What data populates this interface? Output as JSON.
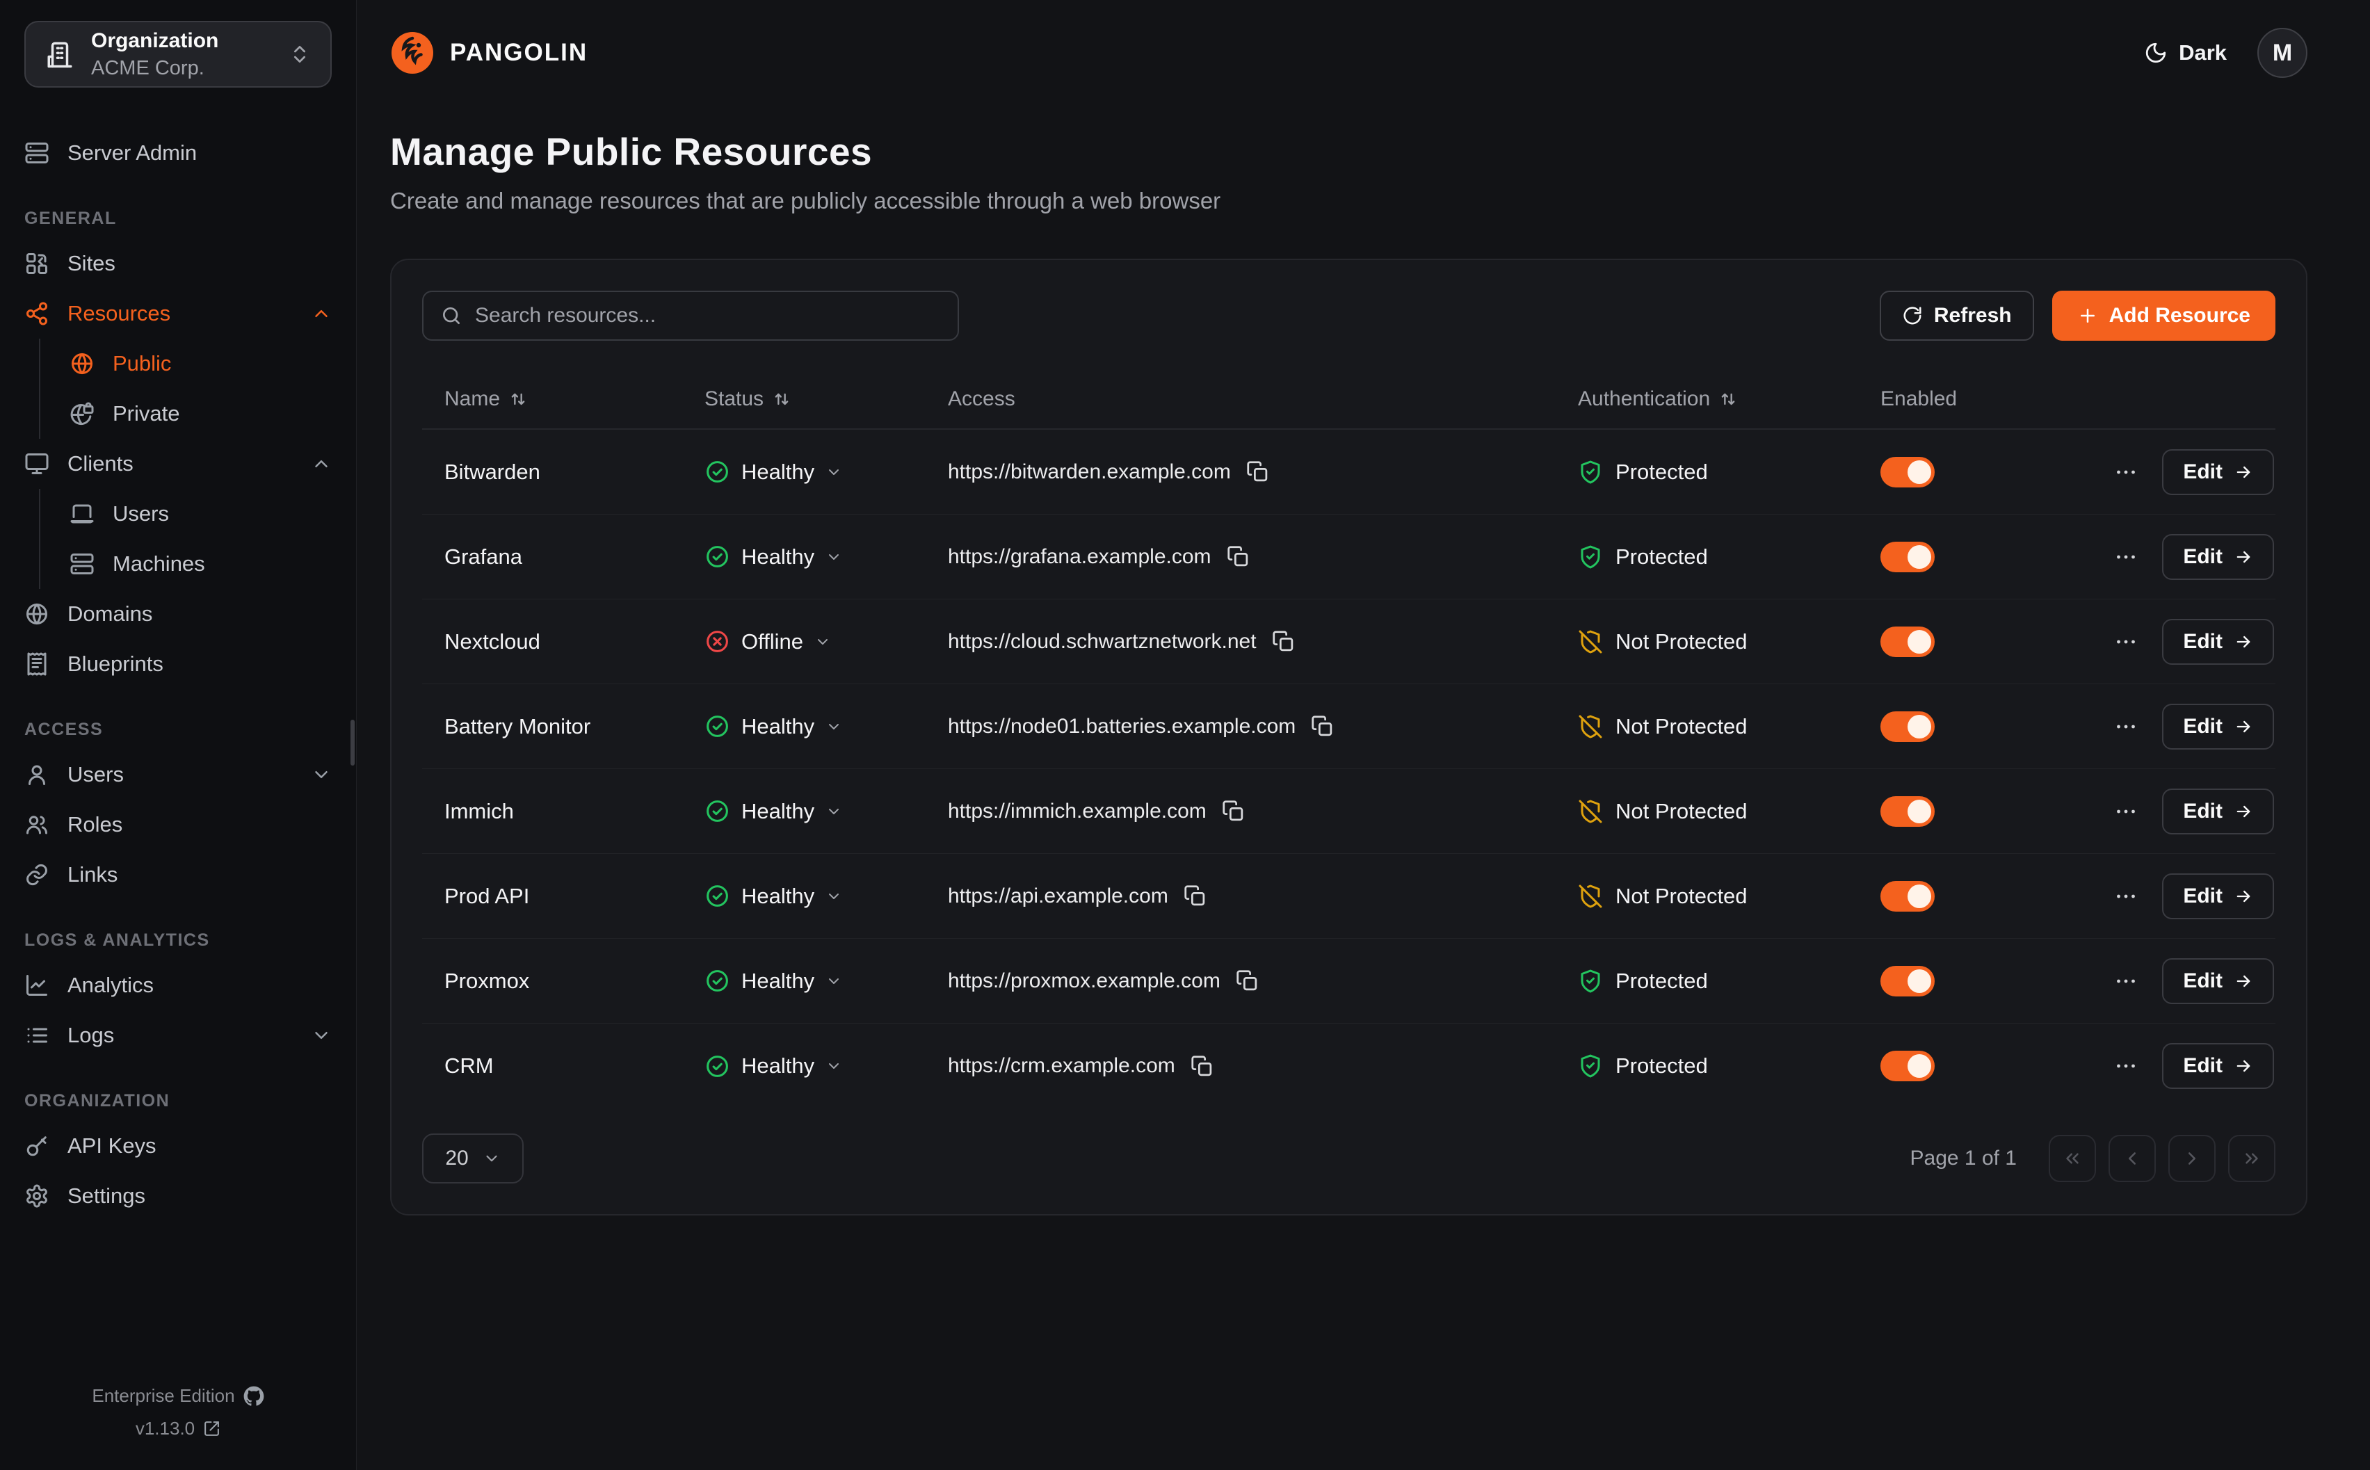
{
  "colors": {
    "accent": "#F4611E",
    "healthy": "#23c45f",
    "offline": "#ef4747",
    "not_protected": "#dfa20e"
  },
  "sidebar": {
    "org_selector": {
      "label": "Organization",
      "value": "ACME Corp."
    },
    "server_admin": "Server Admin",
    "sections": [
      {
        "label": "GENERAL",
        "items": [
          {
            "id": "sites",
            "label": "Sites",
            "icon": "combine-icon"
          },
          {
            "id": "resources",
            "label": "Resources",
            "icon": "share-nodes-icon",
            "active": true,
            "chevron": "up",
            "children": [
              {
                "id": "public",
                "label": "Public",
                "icon": "globe-icon",
                "active": true
              },
              {
                "id": "private",
                "label": "Private",
                "icon": "globe-lock-icon"
              }
            ]
          },
          {
            "id": "clients",
            "label": "Clients",
            "icon": "monitor-icon",
            "chevron": "up",
            "children": [
              {
                "id": "client-users",
                "label": "Users",
                "icon": "laptop-icon"
              },
              {
                "id": "machines",
                "label": "Machines",
                "icon": "server-icon"
              }
            ]
          },
          {
            "id": "domains",
            "label": "Domains",
            "icon": "globe-icon"
          },
          {
            "id": "blueprints",
            "label": "Blueprints",
            "icon": "receipt-icon"
          }
        ]
      },
      {
        "label": "ACCESS",
        "items": [
          {
            "id": "users",
            "label": "Users",
            "icon": "user-icon",
            "chevron": "down"
          },
          {
            "id": "roles",
            "label": "Roles",
            "icon": "users-icon"
          },
          {
            "id": "links",
            "label": "Links",
            "icon": "link-icon"
          }
        ]
      },
      {
        "label": "LOGS & ANALYTICS",
        "items": [
          {
            "id": "analytics",
            "label": "Analytics",
            "icon": "chart-line-icon"
          },
          {
            "id": "logs",
            "label": "Logs",
            "icon": "list-icon",
            "chevron": "down"
          }
        ]
      },
      {
        "label": "ORGANIZATION",
        "items": [
          {
            "id": "api-keys",
            "label": "API Keys",
            "icon": "key-icon"
          },
          {
            "id": "settings",
            "label": "Settings",
            "icon": "gear-icon"
          }
        ]
      }
    ],
    "footer": {
      "edition": "Enterprise Edition",
      "version": "v1.13.0"
    }
  },
  "header": {
    "brand": "PANGOLIN",
    "theme_label": "Dark",
    "avatar_initial": "M"
  },
  "page": {
    "title": "Manage Public Resources",
    "subtitle": "Create and manage resources that are publicly accessible through a web browser"
  },
  "toolbar": {
    "search_placeholder": "Search resources...",
    "refresh_label": "Refresh",
    "add_label": "Add Resource"
  },
  "table": {
    "columns": [
      "Name",
      "Status",
      "Access",
      "Authentication",
      "Enabled"
    ],
    "edit_label": "Edit",
    "rows": [
      {
        "name": "Bitwarden",
        "status": "Healthy",
        "status_kind": "healthy",
        "url": "https://bitwarden.example.com",
        "auth": "Protected",
        "auth_kind": "protected",
        "enabled": true
      },
      {
        "name": "Grafana",
        "status": "Healthy",
        "status_kind": "healthy",
        "url": "https://grafana.example.com",
        "auth": "Protected",
        "auth_kind": "protected",
        "enabled": true
      },
      {
        "name": "Nextcloud",
        "status": "Offline",
        "status_kind": "offline",
        "url": "https://cloud.schwartznetwork.net",
        "auth": "Not Protected",
        "auth_kind": "not_protected",
        "enabled": true
      },
      {
        "name": "Battery Monitor",
        "status": "Healthy",
        "status_kind": "healthy",
        "url": "https://node01.batteries.example.com",
        "auth": "Not Protected",
        "auth_kind": "not_protected",
        "enabled": true
      },
      {
        "name": "Immich",
        "status": "Healthy",
        "status_kind": "healthy",
        "url": "https://immich.example.com",
        "auth": "Not Protected",
        "auth_kind": "not_protected",
        "enabled": true
      },
      {
        "name": "Prod API",
        "status": "Healthy",
        "status_kind": "healthy",
        "url": "https://api.example.com",
        "auth": "Not Protected",
        "auth_kind": "not_protected",
        "enabled": true
      },
      {
        "name": "Proxmox",
        "status": "Healthy",
        "status_kind": "healthy",
        "url": "https://proxmox.example.com",
        "auth": "Protected",
        "auth_kind": "protected",
        "enabled": true
      },
      {
        "name": "CRM",
        "status": "Healthy",
        "status_kind": "healthy",
        "url": "https://crm.example.com",
        "auth": "Protected",
        "auth_kind": "protected",
        "enabled": true
      }
    ]
  },
  "pagination": {
    "page_size": "20",
    "page_info": "Page 1 of 1"
  }
}
